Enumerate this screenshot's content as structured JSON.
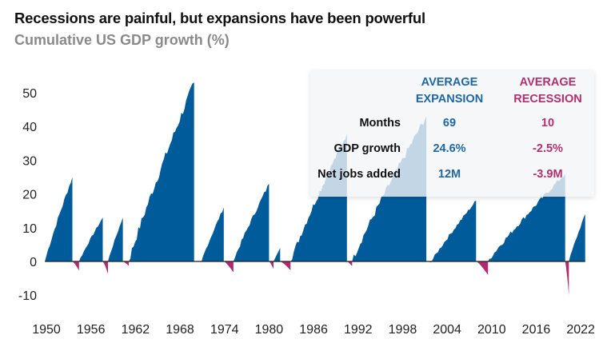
{
  "chart_data": {
    "type": "area",
    "title": "Recessions are painful, but expansions have been powerful",
    "subtitle": "Cumulative US GDP growth (%)",
    "xlabel": "",
    "ylabel": "Cumulative US GDP growth (%)",
    "ylim": [
      -10,
      55
    ],
    "xlim": [
      1950,
      2023
    ],
    "yticks": [
      50,
      40,
      30,
      20,
      10,
      0,
      -10
    ],
    "xticks": [
      "1950",
      "1956",
      "1962",
      "1968",
      "1974",
      "1980",
      "1986",
      "1992",
      "1998",
      "2004",
      "2010",
      "2016",
      "2022"
    ],
    "grid": false,
    "colors": {
      "expansion": "#005b9a",
      "recession": "#b02a70",
      "axis": "#222222"
    },
    "series": [
      {
        "name": "Expansion",
        "segments": [
          {
            "start": 1949.8,
            "end": 1953.5,
            "peak": 25
          },
          {
            "start": 1954.4,
            "end": 1957.6,
            "peak": 13
          },
          {
            "start": 1958.3,
            "end": 1960.3,
            "peak": 13
          },
          {
            "start": 1961.1,
            "end": 1969.9,
            "peak": 53
          },
          {
            "start": 1970.9,
            "end": 1973.9,
            "peak": 16
          },
          {
            "start": 1975.2,
            "end": 1980.0,
            "peak": 23
          },
          {
            "start": 1980.6,
            "end": 1981.5,
            "peak": 4
          },
          {
            "start": 1982.9,
            "end": 1990.5,
            "peak": 38
          },
          {
            "start": 1991.2,
            "end": 2001.2,
            "peak": 43
          },
          {
            "start": 2001.9,
            "end": 2007.9,
            "peak": 18
          },
          {
            "start": 2009.5,
            "end": 2019.9,
            "peak": 26
          },
          {
            "start": 2020.4,
            "end": 2022.6,
            "peak": 14
          }
        ]
      },
      {
        "name": "Recession",
        "segments": [
          {
            "start": 1953.5,
            "end": 1954.4,
            "trough": -2.7
          },
          {
            "start": 1957.6,
            "end": 1958.3,
            "trough": -3.7
          },
          {
            "start": 1960.3,
            "end": 1961.1,
            "trough": -1.3
          },
          {
            "start": 1969.9,
            "end": 1970.9,
            "trough": -0.2
          },
          {
            "start": 1973.9,
            "end": 1975.2,
            "trough": -3.2
          },
          {
            "start": 1980.0,
            "end": 1980.6,
            "trough": -2.2
          },
          {
            "start": 1981.5,
            "end": 1982.9,
            "trough": -2.6
          },
          {
            "start": 1990.5,
            "end": 1991.2,
            "trough": -1.4
          },
          {
            "start": 2001.2,
            "end": 2001.9,
            "trough": -0.3
          },
          {
            "start": 2007.9,
            "end": 2009.5,
            "trough": -4.0
          },
          {
            "start": 2019.9,
            "end": 2020.4,
            "trough": -10.0
          }
        ]
      }
    ],
    "table": {
      "headers": [
        "AVERAGE EXPANSION",
        "AVERAGE RECESSION"
      ],
      "rows": [
        {
          "label": "Months",
          "expansion": "69",
          "recession": "10"
        },
        {
          "label": "GDP growth",
          "expansion": "24.6%",
          "recession": "-2.5%"
        },
        {
          "label": "Net jobs added",
          "expansion": "12M",
          "recession": "-3.9M"
        }
      ]
    }
  },
  "header": {
    "title": "Recessions are painful, but expansions have been powerful",
    "subtitle": "Cumulative US GDP growth (%)"
  },
  "panel": {
    "exp_header_1": "AVERAGE",
    "exp_header_2": "EXPANSION",
    "rec_header_1": "AVERAGE",
    "rec_header_2": "RECESSION",
    "rows": [
      {
        "label": "Months",
        "expansion": "69",
        "recession": "10"
      },
      {
        "label": "GDP growth",
        "expansion": "24.6%",
        "recession": "-2.5%"
      },
      {
        "label": "Net jobs added",
        "expansion": "12M",
        "recession": "-3.9M"
      }
    ]
  }
}
